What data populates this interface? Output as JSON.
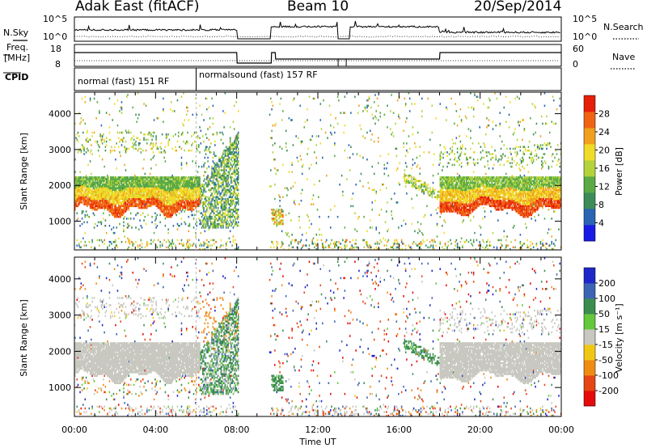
{
  "header": {
    "station": "Adak East (fitACF)",
    "beam": "Beam 10",
    "date": "20/Sep/2014"
  },
  "panel_labels": {
    "nsky": "N.Sky",
    "nsearch": "N.Search",
    "freq_line1": "Freq.",
    "freq_line2": "[MHz]",
    "nave": "Nave",
    "cpid": "CPID",
    "nsky_ticks": [
      "10^5",
      "10^0"
    ],
    "freq_ticks": [
      "18",
      "8"
    ],
    "nave_ticks": [
      "60",
      "0"
    ]
  },
  "modes": [
    {
      "label": "normal (fast) 151 RF",
      "start_hr": 0.0,
      "end_hr": 6.0
    },
    {
      "label": "normalsound (fast) 157 RF",
      "start_hr": 6.0,
      "end_hr": 24.0
    }
  ],
  "chart_data": [
    {
      "type": "heatmap",
      "name": "power",
      "ylabel": "Slant Range [km]",
      "xlim": [
        0,
        24
      ],
      "ylim": [
        200,
        4600
      ],
      "yticks": [
        1000,
        2000,
        3000,
        4000
      ],
      "colorbar": {
        "label": "Power [dB]",
        "ticks": [
          4,
          8,
          12,
          16,
          20,
          24,
          28
        ],
        "range": [
          0,
          32
        ],
        "colors": [
          "#1a1ae6",
          "#2a64b4",
          "#3c8c5a",
          "#5aaa46",
          "#b4d23c",
          "#f0dc28",
          "#f0a01e",
          "#f06414",
          "#e61e0a"
        ]
      }
    },
    {
      "type": "heatmap",
      "name": "velocity",
      "ylabel": "Slant Range [km]",
      "xlabel": "Time UT",
      "xlim": [
        0,
        24
      ],
      "ylim": [
        200,
        4600
      ],
      "yticks": [
        1000,
        2000,
        3000,
        4000
      ],
      "xticks": [
        "00:00",
        "04:00",
        "08:00",
        "12:00",
        "16:00",
        "20:00",
        "00:00"
      ],
      "colorbar": {
        "label": "Velocity [m s⁻¹]",
        "ticks": [
          "200",
          "100",
          "50",
          "15",
          "-15",
          "-50",
          "-100",
          "-200"
        ],
        "colors": [
          "#1e28c8",
          "#3c64b4",
          "#3c8c50",
          "#64c83c",
          "#c8c8c0",
          "#f0c814",
          "#f08c14",
          "#e64614",
          "#e60a0a"
        ]
      }
    }
  ],
  "colors": {
    "ground_scatter": "#c8c8c0",
    "mode_boundary": "#bbbbbb"
  }
}
